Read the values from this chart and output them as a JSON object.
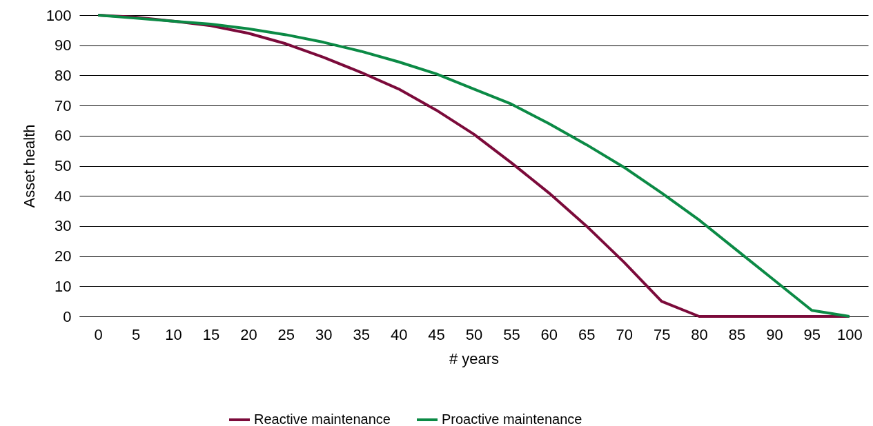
{
  "chart_data": {
    "type": "line",
    "xlabel": "# years",
    "ylabel": "Asset health",
    "categories": [
      "0",
      "5",
      "10",
      "15",
      "20",
      "25",
      "30",
      "35",
      "40",
      "45",
      "50",
      "55",
      "60",
      "65",
      "70",
      "75",
      "80",
      "85",
      "90",
      "95",
      "100"
    ],
    "series": [
      {
        "name": "Reactive maintenance",
        "color": "#7b0a3a",
        "values": [
          100,
          99.3,
          98,
          96.5,
          94,
          90.5,
          86,
          81,
          75.5,
          68.5,
          60.5,
          51,
          41,
          30,
          18,
          5,
          0,
          0,
          0,
          0,
          0
        ]
      },
      {
        "name": "Proactive maintenance",
        "color": "#0b8a45",
        "values": [
          100,
          99,
          98,
          97,
          95.5,
          93.5,
          91,
          88,
          84.5,
          80.5,
          75.5,
          70.5,
          64,
          57,
          49.5,
          41,
          32,
          22,
          12,
          2,
          0
        ]
      }
    ],
    "ylim": [
      0,
      100
    ],
    "yticks": [
      0,
      10,
      20,
      30,
      40,
      50,
      60,
      70,
      80,
      90,
      100
    ],
    "grid": "y",
    "legend": "bottom",
    "marker": "none",
    "line_style": "solid"
  }
}
